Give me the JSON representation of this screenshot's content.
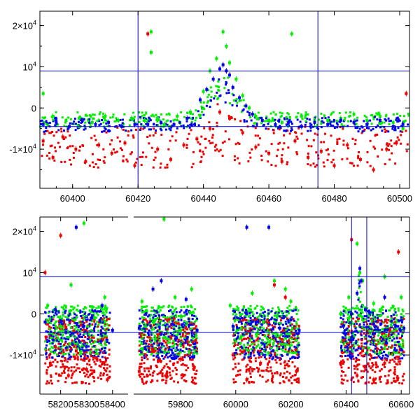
{
  "chart_data": [
    {
      "type": "scatter",
      "title": "",
      "xlabel": "",
      "ylabel": "",
      "xlim": [
        60390,
        60503
      ],
      "ylim": [
        -19500,
        23500
      ],
      "x_ticks": [
        60400,
        60420,
        60440,
        60460,
        60480,
        60500
      ],
      "x_tick_labels": [
        "60400",
        "60420",
        "60440",
        "60460",
        "60480",
        "60500"
      ],
      "y_ticks": [
        20000,
        10000,
        0,
        -10000
      ],
      "y_tick_labels": [
        {
          "base": "2×10",
          "exp": "4"
        },
        {
          "base": "10",
          "exp": "4"
        },
        {
          "base": "0",
          "exp": ""
        },
        {
          "base": "-1×10",
          "exp": "4"
        }
      ],
      "reference_lines": {
        "horizontal": [
          9000,
          -4500
        ],
        "vertical": [
          60420,
          60475
        ]
      },
      "series": [
        {
          "color": "#00ee00",
          "x": [
            60391,
            60394,
            60398,
            60402,
            60406,
            60410,
            60414,
            60418,
            60422,
            60424,
            60424,
            60426,
            60428,
            60432,
            60436,
            60440,
            60442,
            60444,
            60446,
            60447,
            60448,
            60450,
            60452,
            60454,
            60456,
            60460,
            60464,
            60467,
            60470,
            60474,
            60478,
            60482,
            60486,
            60490,
            60494,
            60498,
            60501
          ],
          "y": [
            3500,
            -2000,
            -3000,
            -2500,
            -3500,
            -2000,
            -3000,
            -2500,
            -3000,
            18500,
            13500,
            -2500,
            -4000,
            -2000,
            -1000,
            4000,
            9000,
            12000,
            18500,
            15000,
            11000,
            7000,
            3000,
            0,
            -2000,
            -3000,
            -3500,
            18000,
            -2000,
            -3000,
            -3000,
            -2500,
            -1500,
            -3000,
            -2000,
            -3500,
            -5000
          ]
        },
        {
          "color": "#0000ee",
          "x": [
            60391,
            60395,
            60399,
            60403,
            60407,
            60411,
            60415,
            60419,
            60423,
            60427,
            60431,
            60435,
            60439,
            60441,
            60443,
            60445,
            60446,
            60447,
            60448,
            60449,
            60451,
            60453,
            60455,
            60458,
            60462,
            60466,
            60470,
            60474,
            60478,
            60482,
            60486,
            60490,
            60494,
            60498,
            60501
          ],
          "y": [
            -4000,
            -3500,
            -4500,
            -3000,
            -4000,
            -3500,
            -4500,
            -4000,
            -4000,
            -3500,
            -4000,
            -2500,
            2000,
            4500,
            7000,
            9500,
            10500,
            9000,
            8000,
            5000,
            2500,
            500,
            -1500,
            -3000,
            -4000,
            -3500,
            -4500,
            -3500,
            -4000,
            -3000,
            -3500,
            -4000,
            -3000,
            -4500,
            -4000
          ]
        },
        {
          "color": "#ee0000",
          "x": [
            60391,
            60394,
            60397,
            60401,
            60404,
            60408,
            60412,
            60416,
            60419,
            60423,
            60426,
            60430,
            60434,
            60438,
            60442,
            60445,
            60448,
            60452,
            60456,
            60460,
            60464,
            60468,
            60472,
            60476,
            60480,
            60484,
            60488,
            60492,
            60496,
            60499,
            60502
          ],
          "y": [
            -8000,
            -12000,
            -7000,
            -10000,
            -13000,
            -9000,
            -11000,
            -8500,
            -14000,
            18000,
            -10000,
            -12500,
            -9000,
            -7500,
            -5000,
            -1000,
            -2500,
            -6000,
            -9500,
            -11000,
            -13000,
            -8000,
            -12000,
            -10500,
            -14000,
            -9000,
            -12500,
            -15000,
            -10000,
            -8500,
            3500
          ]
        }
      ]
    },
    {
      "type": "scatter",
      "title": "",
      "xlabel": "",
      "ylabel": "",
      "x_axis_break": true,
      "x_ranges": [
        [
          58120,
          58460
        ],
        [
          59630,
          60630
        ]
      ],
      "ylim": [
        -19500,
        23500
      ],
      "x_ticks": [
        58200,
        58300,
        58400,
        59800,
        60000,
        60200,
        60400,
        60600
      ],
      "x_tick_labels": [
        "58200",
        "58300",
        "58400",
        "59800",
        "60000",
        "60200",
        "60400",
        "60600"
      ],
      "y_ticks": [
        20000,
        10000,
        0,
        -10000
      ],
      "y_tick_labels": [
        {
          "base": "2×10",
          "exp": "4"
        },
        {
          "base": "10",
          "exp": "4"
        },
        {
          "base": "0",
          "exp": ""
        },
        {
          "base": "-1×10",
          "exp": "4"
        }
      ],
      "reference_lines": {
        "horizontal": [
          9000,
          -4500
        ],
        "vertical": [
          60420,
          60475
        ]
      },
      "series": [
        {
          "color": "#00ee00",
          "x": [
            58150,
            58200,
            58240,
            58290,
            58330,
            58370,
            59660,
            59700,
            59740,
            59780,
            59800,
            59840,
            59980,
            60020,
            60060,
            60100,
            60140,
            60180,
            60200,
            60380,
            60410,
            60440,
            60450,
            60460,
            60500,
            60540,
            60580,
            60600
          ],
          "y": [
            2000,
            -3000,
            7000,
            22000,
            -1000,
            4000,
            3000,
            -2000,
            23000,
            4000,
            -4000,
            6000,
            2000,
            -3500,
            5000,
            -2000,
            8000,
            6000,
            3000,
            0,
            4000,
            17000,
            10000,
            8000,
            2500,
            9000,
            -3000,
            4000
          ]
        },
        {
          "color": "#0000ee",
          "x": [
            58140,
            58180,
            58220,
            58260,
            58290,
            58320,
            58360,
            58400,
            59650,
            59700,
            59730,
            59770,
            59820,
            59860,
            59990,
            60040,
            60080,
            60120,
            60160,
            60200,
            60230,
            60390,
            60420,
            60440,
            60450,
            60455,
            60470,
            60500,
            60540,
            60580,
            60610
          ],
          "y": [
            -2000,
            1000,
            -4500,
            21000,
            -3000,
            -1000,
            2000,
            -4000,
            -3500,
            6000,
            8000,
            -2500,
            3500,
            -4000,
            -3000,
            21000,
            -2000,
            21000,
            -3500,
            -1500,
            -4000,
            -3000,
            0,
            5000,
            11000,
            8000,
            1000,
            -2500,
            4000,
            -3000,
            -3500
          ]
        },
        {
          "color": "#ee0000",
          "x": [
            58140,
            58160,
            58180,
            58200,
            58230,
            58260,
            58300,
            58340,
            58380,
            59650,
            59700,
            59750,
            59800,
            59850,
            59990,
            60040,
            60090,
            60140,
            60180,
            60220,
            60380,
            60420,
            60440,
            60460,
            60500,
            60540,
            60590
          ],
          "y": [
            10000,
            -12000,
            -8000,
            19000,
            -15000,
            -9000,
            -13500,
            -11000,
            -16000,
            -14000,
            -9000,
            -15000,
            -11000,
            -13000,
            -10000,
            -16000,
            -12000,
            7000,
            4000,
            -14000,
            -12000,
            18000,
            -15000,
            -9000,
            -16000,
            -12000,
            15000
          ]
        }
      ]
    }
  ]
}
